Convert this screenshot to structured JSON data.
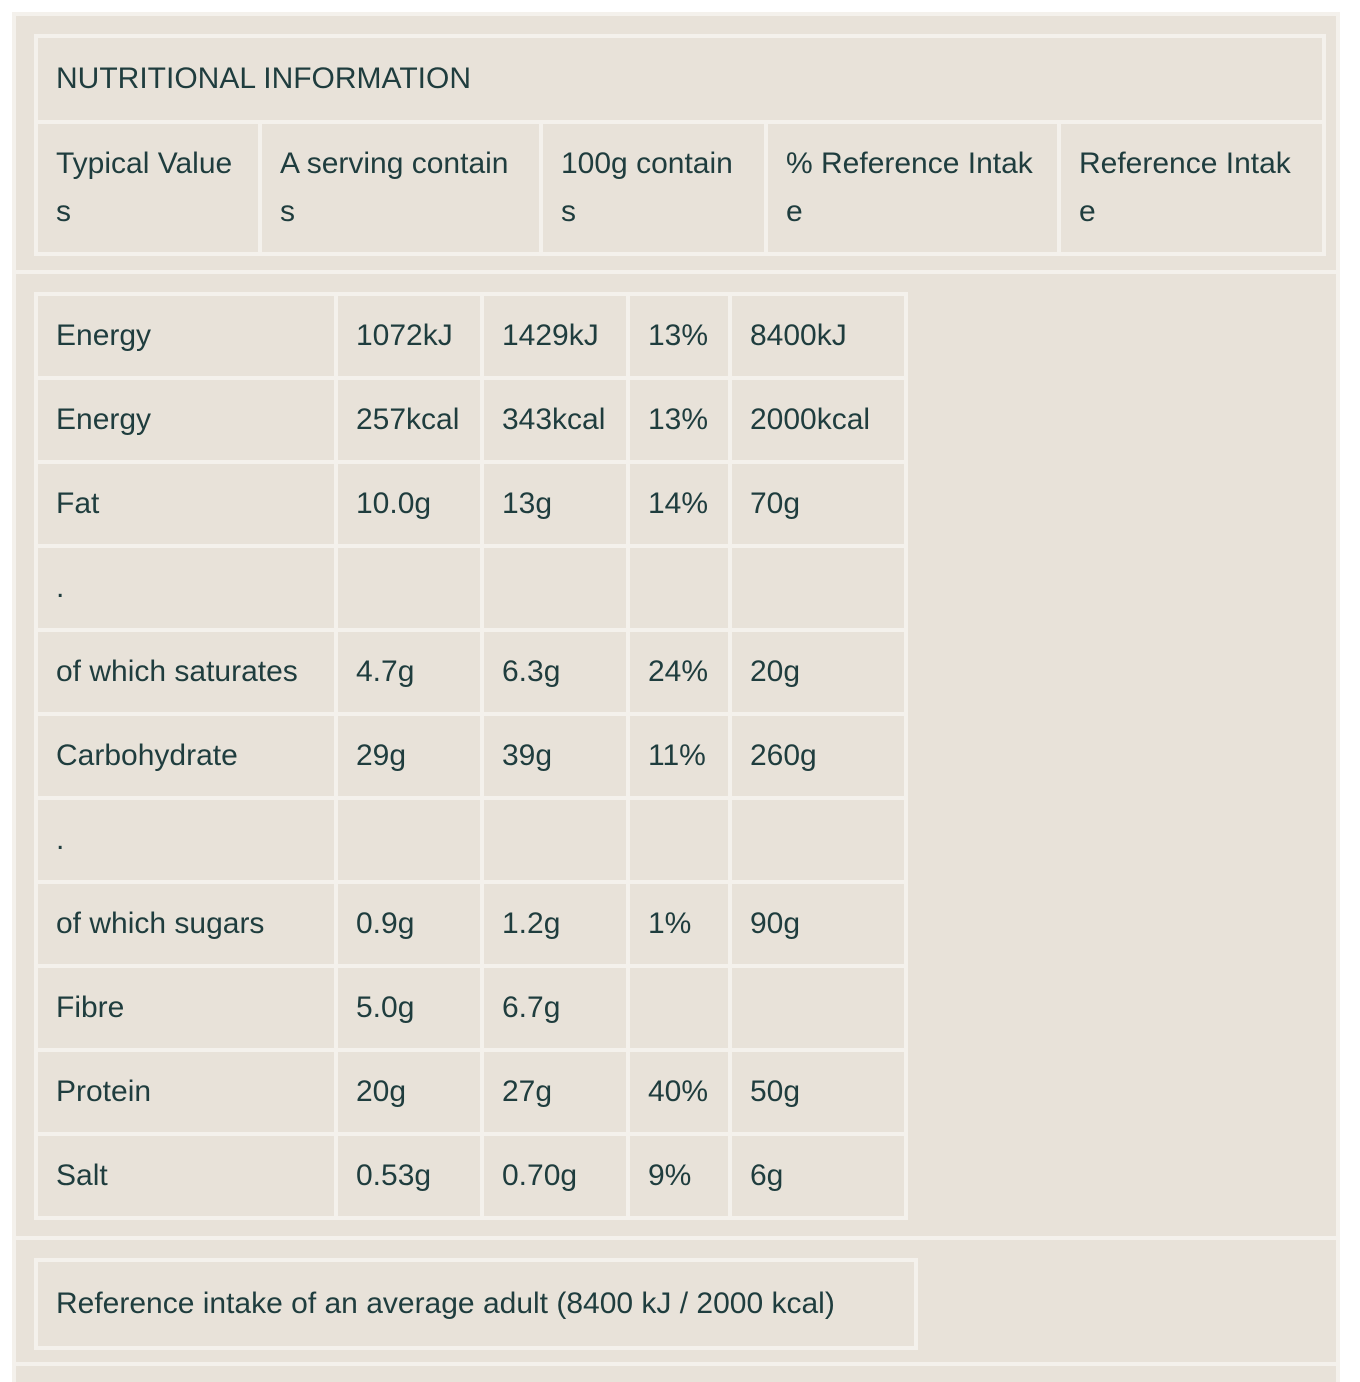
{
  "title": "NUTRITIONAL INFORMATION",
  "columns": [
    "Typical Values",
    "A serving contains",
    "100g contains",
    "% Reference Intake",
    "Reference Intake"
  ],
  "rows": [
    [
      "Energy",
      "1072kJ",
      "1429kJ",
      "13%",
      "8400kJ"
    ],
    [
      "Energy",
      "257kcal",
      "343kcal",
      "13%",
      "2000kcal"
    ],
    [
      "Fat",
      "10.0g",
      "13g",
      "14%",
      "70g"
    ],
    [
      ".",
      "",
      "",
      "",
      ""
    ],
    [
      "of which saturates",
      "4.7g",
      "6.3g",
      "24%",
      "20g"
    ],
    [
      "Carbohydrate",
      "29g",
      "39g",
      "11%",
      "260g"
    ],
    [
      ".",
      "",
      "",
      "",
      ""
    ],
    [
      "of which sugars",
      "0.9g",
      "1.2g",
      "1%",
      "90g"
    ],
    [
      "Fibre",
      "5.0g",
      "6.7g",
      "",
      ""
    ],
    [
      "Protein",
      "20g",
      "27g",
      "40%",
      "50g"
    ],
    [
      "Salt",
      "0.53g",
      "0.70g",
      "9%",
      "6g"
    ]
  ],
  "footnote": "Reference intake of an average adult (8400 kJ / 2000 kcal)",
  "colors": {
    "background": "#e8e2d9",
    "border": "#f4f1ec",
    "text": "#1f3d3e"
  }
}
